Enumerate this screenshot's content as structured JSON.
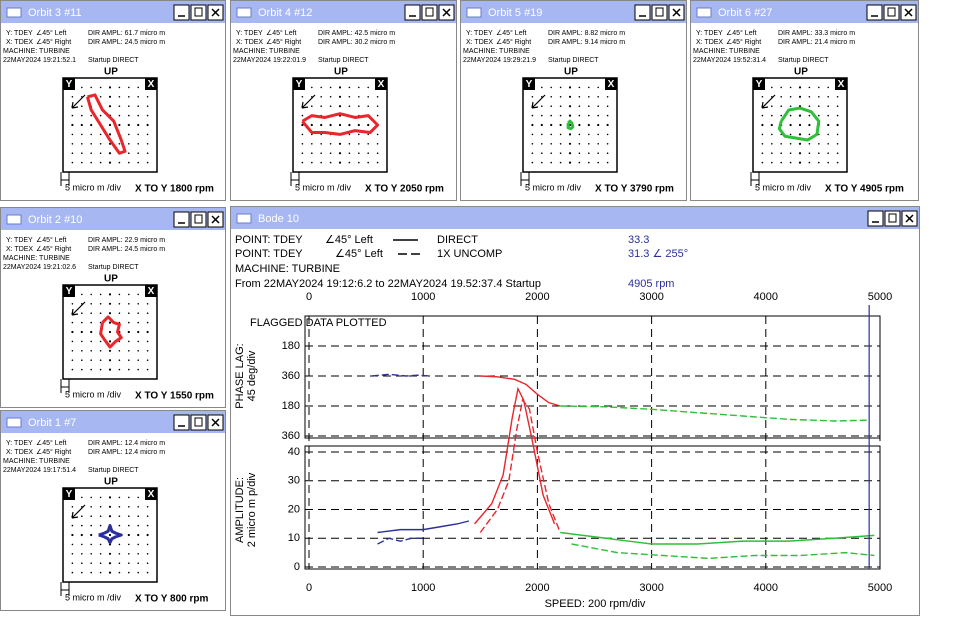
{
  "orbits": [
    {
      "title": "Orbit 3 #11",
      "y_probe": "Y: TDEY",
      "y_angle": "∠45° Left",
      "y_ampl": "DIR AMPL: 61.7 micro m",
      "x_probe": "X: TDEX",
      "x_angle": "∠45° Right",
      "x_ampl": "DIR AMPL: 24.5 micro m",
      "machine": "MACHINE: TURBINE",
      "timestamp": "22MAY2024  19:21:52.1",
      "mode": "Startup  DIRECT",
      "up": "UP",
      "y_label": "Y",
      "x_label": "X",
      "scale": "5 micro m /div",
      "speed": "X TO Y 1800 rpm",
      "color": "#e8262b",
      "orbit": {
        "x": [
          -12,
          -8,
          -4,
          2,
          6,
          8,
          5,
          0,
          -5,
          -10,
          -12
        ],
        "y": [
          15,
          16,
          8,
          2,
          -8,
          -14,
          -15,
          -8,
          0,
          8,
          15
        ]
      }
    },
    {
      "title": "Orbit 4 #12",
      "y_probe": "Y: TDEY",
      "y_angle": "∠45° Left",
      "y_ampl": "DIR AMPL: 42.5 micro m",
      "x_probe": "X: TDEX",
      "x_angle": "∠45° Right",
      "x_ampl": "DIR AMPL: 30.2 micro m",
      "machine": "MACHINE: TURBINE",
      "timestamp": "22MAY2024  19:22:01.9",
      "mode": "Startup  DIRECT",
      "up": "UP",
      "y_label": "Y",
      "x_label": "X",
      "scale": "5 micro m /div",
      "speed": "X TO Y 2050 rpm",
      "color": "#e8262b",
      "orbit": {
        "x": [
          -20,
          -15,
          -8,
          0,
          8,
          15,
          20,
          16,
          8,
          0,
          -8,
          -15,
          -20
        ],
        "y": [
          2,
          5,
          4,
          6,
          4,
          5,
          0,
          -4,
          -3,
          -5,
          -4,
          -4,
          2
        ]
      }
    },
    {
      "title": "Orbit 5 #19",
      "y_probe": "Y: TDEY",
      "y_angle": "∠45° Left",
      "y_ampl": "DIR AMPL: 8.82 micro m",
      "x_probe": "X: TDEX",
      "x_angle": "∠45° Right",
      "x_ampl": "DIR AMPL: 9.14 micro m",
      "machine": "MACHINE: TURBINE",
      "timestamp": "22MAY2024  19:29:21.9",
      "mode": "Startup  DIRECT",
      "up": "UP",
      "y_label": "Y",
      "x_label": "X",
      "scale": "5 micro m /div",
      "speed": "X TO Y 3790 rpm",
      "color": "#2fbf3a",
      "orbit": {
        "x": [
          -1,
          0,
          1,
          1.5,
          0.5,
          -1,
          -1
        ],
        "y": [
          1,
          2,
          1,
          -1,
          -2,
          -1.5,
          1
        ]
      }
    },
    {
      "title": "Orbit 6 #27",
      "y_probe": "Y: TDEY",
      "y_angle": "∠45° Left",
      "y_ampl": "DIR AMPL: 33.3 micro m",
      "x_probe": "X: TDEX",
      "x_angle": "∠45° Right",
      "x_ampl": "DIR AMPL: 21.4 micro m",
      "machine": "MACHINE: TURBINE",
      "timestamp": "22MAY2024  19:52:31.4",
      "mode": "Startup  DIRECT",
      "up": "UP",
      "y_label": "Y",
      "x_label": "X",
      "scale": "5 micro m /div",
      "speed": "X TO Y 4905 rpm",
      "color": "#2fbf3a",
      "orbit": {
        "x": [
          -10,
          -6,
          0,
          6,
          10,
          9,
          4,
          -2,
          -8,
          -11,
          -10
        ],
        "y": [
          2,
          8,
          9,
          7,
          2,
          -5,
          -8,
          -7,
          -6,
          -2,
          2
        ]
      }
    },
    {
      "title": "Orbit 2 #10",
      "y_probe": "Y: TDEY",
      "y_angle": "∠45° Left",
      "y_ampl": "DIR AMPL: 22.9 micro m",
      "x_probe": "X: TDEX",
      "x_angle": "∠45° Right",
      "x_ampl": "DIR AMPL: 24.5 micro m",
      "machine": "MACHINE: TURBINE",
      "timestamp": "22MAY2024  19:21:02.6",
      "mode": "Startup  DIRECT",
      "up": "UP",
      "y_label": "Y",
      "x_label": "X",
      "scale": "5 micro m /div",
      "speed": "X TO Y 1550 rpm",
      "color": "#e8262b",
      "orbit": {
        "x": [
          -4,
          -1,
          2,
          5,
          4,
          6,
          3,
          0,
          -3,
          -5,
          -4
        ],
        "y": [
          5,
          8,
          5,
          4,
          0,
          -3,
          -5,
          -8,
          -4,
          -1,
          5
        ]
      }
    },
    {
      "title": "Orbit 1 #7",
      "y_probe": "Y: TDEY",
      "y_angle": "∠45° Left",
      "y_ampl": "DIR AMPL: 12.4 micro m",
      "x_probe": "X: TDEX",
      "x_angle": "∠45° Right",
      "x_ampl": "DIR AMPL: 12.4 micro m",
      "machine": "MACHINE: TURBINE",
      "timestamp": "22MAY2024  19:17:51.4",
      "mode": "Startup  DIRECT",
      "up": "UP",
      "y_label": "Y",
      "x_label": "X",
      "scale": "5 micro m /div",
      "speed": "X TO Y 800 rpm",
      "color": "#2b2f9e",
      "orbit": {
        "x": [
          -6,
          -3,
          -1,
          0,
          1,
          3,
          6,
          3,
          1,
          0,
          -1,
          -3,
          -6
        ],
        "y": [
          0,
          1,
          2,
          5,
          2,
          1,
          0,
          -1,
          -2,
          -4,
          -2,
          -1,
          0
        ]
      }
    }
  ],
  "bode": {
    "title": "Bode 10",
    "line1": {
      "point": "POINT: TDEY",
      "angle": "∠45° Left",
      "name": "DIRECT",
      "value": "33.3"
    },
    "line2": {
      "point": "POINT: TDEY",
      "angle": "∠45° Left",
      "name": "1X UNCOMP",
      "value": "31.3 ∠ 255°"
    },
    "machine": "MACHINE: TURBINE",
    "range": "From 22MAY2024  19:12:6.2 to 22MAY2024 19.52:37.4  Startup",
    "cursor": {
      "value": 4905,
      "label": "4905 rpm"
    },
    "flag": "FLAGGED DATA PLOTTED",
    "phase_label": [
      "PHASE LAG:",
      "45 deg/div"
    ],
    "amp_label": [
      "AMPLITUDE:",
      "2 micro m p/div"
    ],
    "xlabel": "SPEED: 200 rpm/div",
    "xlim": [
      0,
      5000
    ],
    "xticks": [
      0,
      1000,
      2000,
      3000,
      4000,
      5000
    ],
    "phase_ylim": [
      0,
      720
    ],
    "phase_yticks": [
      {
        "value": 180,
        "label": "180"
      },
      360,
      {
        "value": 540,
        "label": "180"
      },
      {
        "value": 720,
        "label": "360"
      }
    ],
    "amp_ylim": [
      0,
      40
    ],
    "amp_yticks": [
      0,
      10,
      20,
      30,
      40
    ],
    "traces": [
      {
        "panel": "phase",
        "color": "#2b2f9e",
        "style": "dashed",
        "x": [
          550,
          700,
          850,
          950,
          1050
        ],
        "y": [
          360,
          350,
          360,
          355,
          360
        ]
      },
      {
        "panel": "phase",
        "color": "#e8262b",
        "style": "solid",
        "x": [
          1500,
          1650,
          1800,
          1900,
          2000,
          2100,
          2200
        ],
        "y": [
          360,
          365,
          380,
          410,
          470,
          520,
          540
        ]
      },
      {
        "panel": "phase",
        "color": "#2fbf3a",
        "style": "dashed",
        "x": [
          2200,
          2600,
          3000,
          3400,
          3800,
          4200,
          4600,
          4900
        ],
        "y": [
          540,
          545,
          560,
          580,
          600,
          620,
          630,
          625
        ]
      },
      {
        "panel": "amplitude",
        "color": "#2b2f9e",
        "style": "solid",
        "x": [
          600,
          800,
          1000,
          1150,
          1300,
          1400
        ],
        "y": [
          12,
          13,
          13,
          14,
          15,
          16
        ]
      },
      {
        "panel": "amplitude",
        "color": "#2b2f9e",
        "style": "dashed",
        "x": [
          600,
          700,
          800,
          900,
          1000
        ],
        "y": [
          8,
          10,
          9,
          10,
          10
        ]
      },
      {
        "panel": "amplitude",
        "color": "#e8262b",
        "style": "solid",
        "x": [
          1450,
          1600,
          1700,
          1780,
          1830,
          1880,
          1950,
          2050,
          2150
        ],
        "y": [
          15,
          22,
          32,
          52,
          62,
          58,
          45,
          25,
          15
        ]
      },
      {
        "panel": "amplitude",
        "color": "#e8262b",
        "style": "dashed",
        "x": [
          1500,
          1650,
          1750,
          1820,
          1870,
          1930,
          2000,
          2100,
          2200
        ],
        "y": [
          12,
          20,
          30,
          48,
          58,
          55,
          40,
          22,
          12
        ]
      },
      {
        "panel": "amplitude",
        "color": "#2fbf3a",
        "style": "solid",
        "x": [
          2200,
          2600,
          3000,
          3400,
          3800,
          4200,
          4600,
          4950
        ],
        "y": [
          12,
          10,
          8,
          8,
          9,
          9,
          10,
          11
        ]
      },
      {
        "panel": "amplitude",
        "color": "#2fbf3a",
        "style": "dashed",
        "x": [
          2300,
          2700,
          3100,
          3500,
          3900,
          4300,
          4700,
          4950
        ],
        "y": [
          8,
          5,
          4,
          3,
          4,
          4,
          5,
          4
        ]
      }
    ]
  }
}
